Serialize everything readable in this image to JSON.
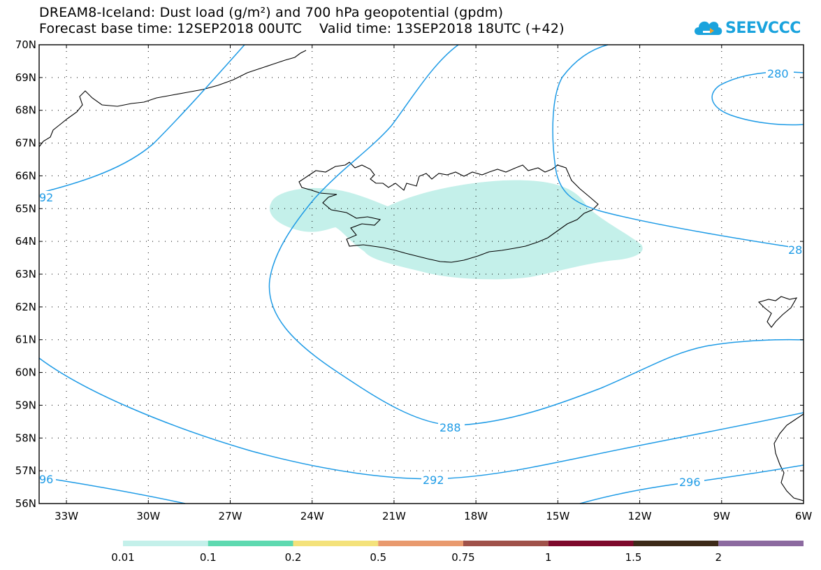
{
  "header": {
    "title_line1": "DREAM8-Iceland: Dust load (g/m²) and 700 hPa geopotential (gpdm)",
    "title_line2": "Forecast base time: 12SEP2018 00UTC    Valid time: 13SEP2018 18UTC (+42)"
  },
  "logo": {
    "text": "SEEVCCC",
    "icon": "cloud-logo-icon"
  },
  "map": {
    "lat_labels": [
      "70N",
      "69N",
      "68N",
      "67N",
      "66N",
      "65N",
      "64N",
      "63N",
      "62N",
      "61N",
      "60N",
      "59N",
      "58N",
      "57N",
      "56N"
    ],
    "lon_labels": [
      "33W",
      "30W",
      "27W",
      "24W",
      "21W",
      "18W",
      "15W",
      "12W",
      "9W",
      "6W"
    ],
    "contour_labels": [
      "280",
      "28",
      "92",
      "288",
      "292",
      "96",
      "296"
    ],
    "dust_color": "#c4f0ea",
    "contour_color": "#1e9be6"
  },
  "colorbar": {
    "colors": [
      "#c4f0ea",
      "#5ed9b0",
      "#f4e27b",
      "#e99a6e",
      "#a0524a",
      "#7e0a2c",
      "#3d2a18",
      "#8c6aa0"
    ],
    "labels": [
      "0.01",
      "0.1",
      "0.2",
      "0.5",
      "0.75",
      "1",
      "1.5",
      "2"
    ]
  }
}
